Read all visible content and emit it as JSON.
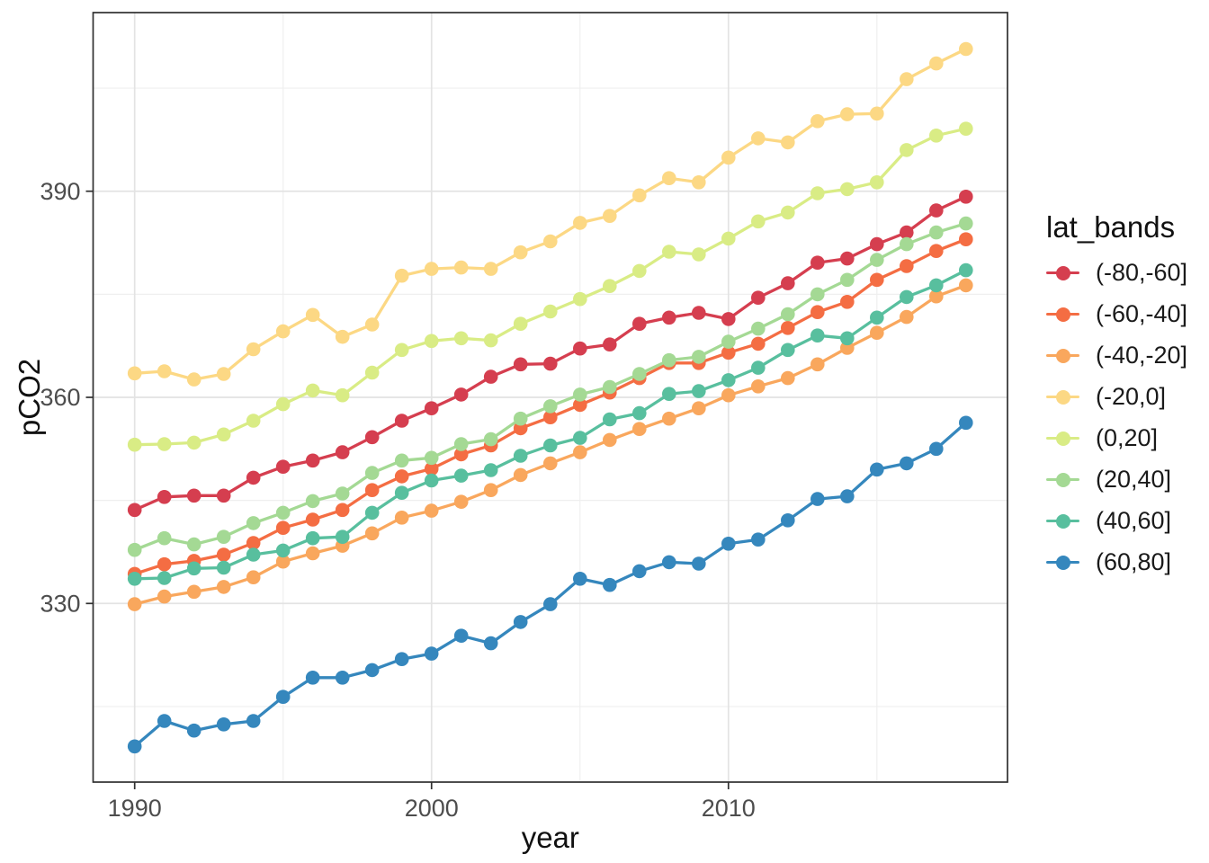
{
  "chart_data": {
    "type": "line",
    "title": "",
    "xlabel": "year",
    "ylabel": "pCO2",
    "x": [
      1990,
      1991,
      1992,
      1993,
      1994,
      1995,
      1996,
      1997,
      1998,
      1999,
      2000,
      2001,
      2002,
      2003,
      2004,
      2005,
      2006,
      2007,
      2008,
      2009,
      2010,
      2011,
      2012,
      2013,
      2014,
      2015,
      2016,
      2017,
      2018
    ],
    "series": [
      {
        "name": "(-80,-60]",
        "color": "#d53e4f",
        "values": [
          343.6,
          345.5,
          345.7,
          345.7,
          348.3,
          349.9,
          350.8,
          352.0,
          354.2,
          356.6,
          358.4,
          360.4,
          363.0,
          364.8,
          364.9,
          367.1,
          367.7,
          370.7,
          371.6,
          372.3,
          371.4,
          374.5,
          376.6,
          379.6,
          380.2,
          382.3,
          384.0,
          387.2,
          389.2
        ]
      },
      {
        "name": "(-60,-40]",
        "color": "#f46d43",
        "values": [
          334.3,
          335.7,
          336.2,
          337.1,
          338.8,
          341.0,
          342.2,
          343.6,
          346.5,
          348.5,
          349.6,
          351.7,
          353.0,
          355.5,
          357.1,
          358.9,
          360.7,
          362.8,
          365.0,
          365.0,
          366.5,
          367.8,
          370.1,
          372.4,
          373.9,
          377.1,
          379.1,
          381.3,
          383.0
        ]
      },
      {
        "name": "(-40,-20]",
        "color": "#f9a75d",
        "values": [
          329.9,
          331.0,
          331.7,
          332.4,
          333.8,
          336.1,
          337.3,
          338.4,
          340.2,
          342.5,
          343.5,
          344.8,
          346.5,
          348.7,
          350.4,
          352.0,
          353.8,
          355.4,
          356.9,
          358.4,
          360.3,
          361.6,
          362.8,
          364.8,
          367.2,
          369.4,
          371.7,
          374.7,
          376.3
        ]
      },
      {
        "name": "(-20,0]",
        "color": "#fcd884",
        "values": [
          363.5,
          363.8,
          362.6,
          363.4,
          367.0,
          369.6,
          372.0,
          368.8,
          370.6,
          377.7,
          378.7,
          378.9,
          378.7,
          381.1,
          382.7,
          385.4,
          386.4,
          389.4,
          391.9,
          391.3,
          394.9,
          397.7,
          397.1,
          400.2,
          401.2,
          401.3,
          406.3,
          408.6,
          410.7
        ]
      },
      {
        "name": "(0,20]",
        "color": "#d9ec85",
        "values": [
          353.1,
          353.2,
          353.4,
          354.6,
          356.6,
          359.0,
          361.0,
          360.3,
          363.6,
          366.9,
          368.2,
          368.6,
          368.3,
          370.7,
          372.5,
          374.3,
          376.2,
          378.4,
          381.2,
          380.8,
          383.1,
          385.6,
          386.9,
          389.7,
          390.3,
          391.3,
          396.0,
          398.1,
          399.1
        ]
      },
      {
        "name": "(20,40]",
        "color": "#a4d994",
        "values": [
          337.8,
          339.5,
          338.6,
          339.7,
          341.7,
          343.2,
          344.9,
          346.0,
          349.0,
          350.8,
          351.2,
          353.2,
          353.9,
          356.9,
          358.7,
          360.4,
          361.5,
          363.4,
          365.4,
          365.9,
          368.1,
          370.0,
          372.1,
          375.0,
          377.1,
          380.0,
          382.3,
          384.0,
          385.3
        ]
      },
      {
        "name": "(40,60]",
        "color": "#58bf9e",
        "values": [
          333.6,
          333.7,
          335.1,
          335.2,
          337.1,
          337.7,
          339.5,
          339.7,
          343.2,
          346.1,
          347.9,
          348.6,
          349.4,
          351.5,
          353.0,
          354.1,
          356.8,
          357.7,
          360.5,
          360.9,
          362.5,
          364.3,
          366.9,
          369.0,
          368.6,
          371.6,
          374.6,
          376.3,
          378.5
        ]
      },
      {
        "name": "(60,80]",
        "color": "#3587bd",
        "values": [
          309.2,
          312.9,
          311.5,
          312.4,
          312.9,
          316.4,
          319.2,
          319.2,
          320.3,
          321.9,
          322.7,
          325.3,
          324.2,
          327.3,
          329.9,
          333.6,
          332.7,
          334.7,
          336.0,
          335.8,
          338.7,
          339.3,
          342.1,
          345.2,
          345.6,
          349.5,
          350.4,
          352.5,
          356.3
        ]
      }
    ],
    "legend": {
      "title": "lat_bands",
      "position": "right",
      "entries": [
        "(-80,-60]",
        "(-60,-40]",
        "(-40,-20]",
        "(-20,0]",
        "(0,20]",
        "(20,40]",
        "(40,60]",
        "(60,80]"
      ]
    },
    "x_ticks": [
      1990,
      2000,
      2010
    ],
    "x_minor_ticks": [
      1995,
      2005,
      2015
    ],
    "y_ticks": [
      330,
      360,
      390
    ],
    "y_minor_ticks": [
      315,
      345,
      375,
      405
    ],
    "xlim": [
      1988.6,
      2019.4
    ],
    "ylim": [
      304,
      416
    ],
    "grid": true,
    "theme": {
      "panel_border": "#303030",
      "grid_major": "#e3e3e3",
      "grid_minor": "#efefef",
      "tick_color": "#303030",
      "tick_label_color": "#4d4d4d",
      "axis_title_color": "#111111",
      "background": "#ffffff"
    }
  }
}
